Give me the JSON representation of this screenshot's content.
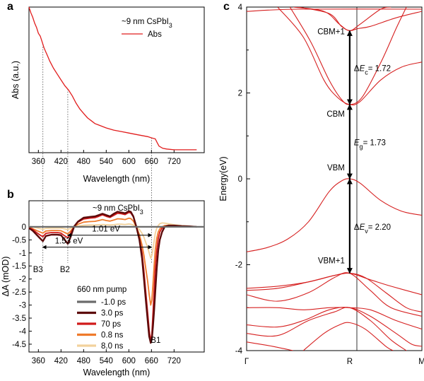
{
  "panel_labels": {
    "a": "a",
    "b": "b",
    "c": "c"
  },
  "colors": {
    "abs": "#e11d1d",
    "t_m1ps": "#6b6b6b",
    "t_3ps": "#5c0a0a",
    "t_70ps": "#d11a1a",
    "t_08ns": "#ef7a2b",
    "t_8ns": "#f2d29c",
    "band": "#d62020"
  },
  "chart_data": [
    {
      "id": "a",
      "type": "line",
      "title": "",
      "xlabel": "Wavelength (nm)",
      "ylabel": "Abs (a.u.)",
      "xlim": [
        335,
        800
      ],
      "ylim": [
        0,
        1.0
      ],
      "xticks": [
        360,
        420,
        480,
        540,
        600,
        660,
        720
      ],
      "xtick_labels": [
        "360",
        "420",
        "480",
        "540",
        "600",
        "660",
        "720"
      ],
      "legend_title": "~9 nm CsPbI3",
      "legend_title_main": "~9 nm CsPbI",
      "legend_title_sub": "3",
      "series": [
        {
          "name": "Abs",
          "x": [
            335,
            340,
            345,
            350,
            355,
            360,
            365,
            370,
            375,
            380,
            385,
            390,
            400,
            410,
            420,
            430,
            440,
            450,
            460,
            470,
            480,
            490,
            500,
            510,
            520,
            540,
            560,
            580,
            600,
            620,
            640,
            650,
            660,
            665,
            670,
            675,
            680,
            690,
            700,
            720,
            740,
            760,
            780
          ],
          "y": [
            1.0,
            0.96,
            0.93,
            0.89,
            0.86,
            0.82,
            0.8,
            0.76,
            0.72,
            0.69,
            0.66,
            0.63,
            0.58,
            0.54,
            0.5,
            0.46,
            0.43,
            0.39,
            0.34,
            0.3,
            0.27,
            0.24,
            0.22,
            0.2,
            0.19,
            0.17,
            0.155,
            0.145,
            0.135,
            0.125,
            0.115,
            0.11,
            0.102,
            0.098,
            0.095,
            0.07,
            0.045,
            0.03,
            0.025,
            0.02,
            0.02,
            0.02,
            0.02
          ]
        }
      ]
    },
    {
      "id": "b",
      "type": "line",
      "title": "~9 nm CsPbI3",
      "title_main": "~9 nm CsPbI",
      "title_sub": "3",
      "xlabel": "Wavelength (nm)",
      "ylabel": "ΔA  (mOD)",
      "xlim": [
        335,
        800
      ],
      "ylim": [
        -4.8,
        1.0
      ],
      "xticks": [
        360,
        420,
        480,
        540,
        600,
        660,
        720
      ],
      "xtick_labels": [
        "360",
        "420",
        "480",
        "540",
        "600",
        "660",
        "720"
      ],
      "yticks": [
        0,
        -0.5,
        -1,
        -1.5,
        -2,
        -2.5,
        -3,
        -3.5,
        -4,
        -4.5
      ],
      "ytick_labels": [
        "0",
        "-0.5",
        "-1",
        "-1.5",
        "-2",
        "-2.5",
        "-3",
        "-3.5",
        "-4",
        "-4.5"
      ],
      "legend_title": "660 nm pump",
      "series": [
        {
          "name": "-1.0 ps",
          "x": [
            335,
            500,
            800
          ],
          "y": [
            0.0,
            0.0,
            0.0
          ]
        },
        {
          "name": "3.0 ps",
          "x": [
            335,
            345,
            355,
            365,
            372,
            380,
            395,
            410,
            420,
            430,
            438,
            445,
            455,
            465,
            480,
            495,
            510,
            520,
            530,
            540,
            550,
            560,
            570,
            580,
            590,
            600,
            605,
            612,
            620,
            628,
            635,
            640,
            645,
            650,
            654,
            658,
            661,
            664,
            667,
            670,
            674,
            678,
            682,
            688,
            695,
            705,
            720,
            740,
            760,
            780
          ],
          "y": [
            -0.05,
            -0.15,
            -0.3,
            -0.45,
            -0.55,
            -0.35,
            -0.3,
            -0.3,
            -0.32,
            -0.5,
            -0.65,
            -0.4,
            0.02,
            0.2,
            0.35,
            0.38,
            0.4,
            0.45,
            0.5,
            0.45,
            0.4,
            0.5,
            0.58,
            0.55,
            0.52,
            0.6,
            0.58,
            0.4,
            0.0,
            -0.5,
            -1.2,
            -2.0,
            -2.8,
            -3.6,
            -4.2,
            -4.45,
            -4.3,
            -3.8,
            -3.2,
            -2.5,
            -1.6,
            -0.9,
            -0.5,
            -0.2,
            0.0,
            0.05,
            0.05,
            0.03,
            0.02,
            0.0
          ]
        },
        {
          "name": "70 ps",
          "x": [
            335,
            345,
            355,
            365,
            372,
            380,
            395,
            410,
            420,
            430,
            438,
            445,
            455,
            465,
            480,
            495,
            510,
            520,
            530,
            540,
            550,
            560,
            570,
            580,
            590,
            600,
            605,
            612,
            620,
            628,
            635,
            640,
            645,
            650,
            654,
            658,
            661,
            664,
            667,
            670,
            674,
            678,
            682,
            688,
            695,
            705,
            720,
            740,
            760,
            780
          ],
          "y": [
            -0.03,
            -0.1,
            -0.22,
            -0.32,
            -0.38,
            -0.25,
            -0.22,
            -0.22,
            -0.24,
            -0.35,
            -0.42,
            -0.26,
            0.02,
            0.18,
            0.3,
            0.33,
            0.35,
            0.4,
            0.46,
            0.4,
            0.36,
            0.44,
            0.52,
            0.5,
            0.47,
            0.55,
            0.53,
            0.38,
            0.0,
            -0.45,
            -1.0,
            -1.7,
            -2.5,
            -3.3,
            -3.95,
            -4.4,
            -4.1,
            -3.3,
            -2.4,
            -1.6,
            -0.9,
            -0.45,
            -0.2,
            -0.05,
            0.02,
            0.05,
            0.05,
            0.03,
            0.02,
            0.0
          ]
        },
        {
          "name": "0.8 ns",
          "x": [
            335,
            345,
            355,
            365,
            372,
            380,
            395,
            410,
            420,
            430,
            438,
            445,
            455,
            465,
            480,
            495,
            510,
            520,
            530,
            540,
            550,
            560,
            570,
            580,
            590,
            600,
            605,
            612,
            620,
            628,
            635,
            640,
            645,
            650,
            654,
            658,
            661,
            664,
            667,
            670,
            674,
            678,
            682,
            688,
            695,
            705,
            720,
            740,
            760,
            780
          ],
          "y": [
            -0.02,
            -0.07,
            -0.14,
            -0.2,
            -0.24,
            -0.16,
            -0.14,
            -0.14,
            -0.15,
            -0.22,
            -0.27,
            -0.17,
            0.01,
            0.1,
            0.18,
            0.2,
            0.21,
            0.24,
            0.28,
            0.24,
            0.22,
            0.26,
            0.31,
            0.3,
            0.28,
            0.33,
            0.32,
            0.22,
            0.0,
            -0.3,
            -0.7,
            -1.1,
            -1.6,
            -2.1,
            -2.6,
            -3.0,
            -2.8,
            -2.2,
            -1.5,
            -0.9,
            -0.45,
            -0.2,
            -0.08,
            0.0,
            0.05,
            0.06,
            0.05,
            0.03,
            0.02,
            0.0
          ]
        },
        {
          "name": "8.0 ns",
          "x": [
            335,
            345,
            355,
            365,
            372,
            380,
            395,
            410,
            420,
            430,
            438,
            445,
            455,
            465,
            480,
            495,
            510,
            520,
            530,
            540,
            550,
            560,
            570,
            580,
            590,
            600,
            605,
            612,
            620,
            628,
            635,
            640,
            645,
            650,
            654,
            658,
            661,
            664,
            667,
            670,
            674,
            678,
            682,
            688,
            695,
            705,
            720,
            740,
            760,
            780
          ],
          "y": [
            0.02,
            0.0,
            -0.04,
            -0.07,
            -0.09,
            -0.06,
            -0.05,
            -0.05,
            -0.05,
            -0.08,
            -0.1,
            -0.06,
            0.0,
            0.03,
            0.06,
            0.07,
            0.07,
            0.08,
            0.09,
            0.08,
            0.07,
            0.08,
            0.1,
            0.1,
            0.09,
            0.11,
            0.1,
            0.07,
            0.0,
            -0.1,
            -0.25,
            -0.4,
            -0.6,
            -0.8,
            -1.0,
            -1.2,
            -1.1,
            -0.85,
            -0.55,
            -0.25,
            -0.05,
            0.05,
            0.12,
            0.15,
            0.14,
            0.12,
            0.08,
            0.05,
            0.03,
            0.0
          ]
        }
      ],
      "annotations": [
        {
          "label": "1.01 eV",
          "x_from": 438,
          "x_to": 660,
          "y": -0.32
        },
        {
          "label": "1.53 eV",
          "x_from": 372,
          "x_to": 660,
          "y": -0.78
        }
      ],
      "peak_labels": [
        {
          "label": "B3",
          "x": 372
        },
        {
          "label": "B2",
          "x": 438
        },
        {
          "label": "B1",
          "x": 660
        }
      ]
    },
    {
      "id": "c",
      "type": "line",
      "title": "",
      "xlabel": "",
      "ylabel": "Energy(eV)",
      "ylim": [
        -4,
        4
      ],
      "yticks": [
        -4,
        -2,
        0,
        2,
        4
      ],
      "ytick_labels": [
        "-4",
        "-2",
        "0",
        "2",
        "4"
      ],
      "kpoints": [
        "Γ",
        "R",
        "M"
      ],
      "kpoint_positions": [
        0,
        1,
        1.7
      ],
      "bands": [
        [
          [
            0.0,
            3.9
          ],
          [
            0.5,
            3.95
          ],
          [
            1.7,
            3.95
          ]
        ],
        [
          [
            0.45,
            4.0
          ],
          [
            0.75,
            3.9
          ],
          [
            0.9,
            3.6
          ],
          [
            1.0,
            3.45
          ],
          [
            1.1,
            3.6
          ],
          [
            1.3,
            3.95
          ],
          [
            1.4,
            4.0
          ]
        ],
        [
          [
            0.5,
            4.0
          ],
          [
            0.8,
            3.85
          ],
          [
            0.92,
            3.55
          ],
          [
            1.0,
            3.45
          ],
          [
            1.08,
            3.5
          ],
          [
            1.2,
            3.55
          ],
          [
            1.45,
            3.75
          ],
          [
            1.7,
            3.9
          ]
        ],
        [
          [
            0.3,
            4.0
          ],
          [
            0.55,
            3.3
          ],
          [
            0.75,
            2.3
          ],
          [
            0.88,
            1.9
          ],
          [
            1.0,
            1.73
          ],
          [
            1.1,
            1.8
          ],
          [
            1.3,
            2.3
          ],
          [
            1.5,
            2.6
          ],
          [
            1.7,
            2.72
          ]
        ],
        [
          [
            0.42,
            4.0
          ],
          [
            0.62,
            3.2
          ],
          [
            0.8,
            2.3
          ],
          [
            0.92,
            1.85
          ],
          [
            1.0,
            1.73
          ],
          [
            1.12,
            1.9
          ],
          [
            1.3,
            2.7
          ],
          [
            1.45,
            3.5
          ],
          [
            1.55,
            4.0
          ]
        ],
        [
          [
            0.0,
            -1.7
          ],
          [
            0.2,
            -1.6
          ],
          [
            0.4,
            -1.4
          ],
          [
            0.6,
            -1.0
          ],
          [
            0.8,
            -0.3
          ],
          [
            0.92,
            -0.05
          ],
          [
            1.0,
            0.0
          ],
          [
            1.1,
            -0.1
          ],
          [
            1.3,
            -0.5
          ],
          [
            1.5,
            -0.75
          ],
          [
            1.7,
            -0.85
          ]
        ],
        [
          [
            0.0,
            -2.55
          ],
          [
            0.3,
            -2.5
          ],
          [
            0.6,
            -2.4
          ],
          [
            0.85,
            -2.25
          ],
          [
            1.0,
            -2.2
          ],
          [
            1.2,
            -2.35
          ],
          [
            1.4,
            -2.5
          ],
          [
            1.7,
            -2.7
          ]
        ],
        [
          [
            0.0,
            -2.6
          ],
          [
            0.3,
            -2.55
          ],
          [
            0.6,
            -2.4
          ],
          [
            0.85,
            -2.25
          ],
          [
            1.0,
            -2.2
          ],
          [
            1.15,
            -2.3
          ],
          [
            1.35,
            -2.65
          ],
          [
            1.55,
            -3.0
          ],
          [
            1.7,
            -3.1
          ]
        ],
        [
          [
            0.0,
            -2.7
          ],
          [
            0.3,
            -2.85
          ],
          [
            0.6,
            -2.65
          ],
          [
            0.85,
            -2.3
          ],
          [
            1.0,
            -2.2
          ],
          [
            1.2,
            -2.6
          ],
          [
            1.4,
            -3.0
          ],
          [
            1.7,
            -3.2
          ]
        ],
        [
          [
            0.0,
            -3.0
          ],
          [
            0.3,
            -3.0
          ],
          [
            0.55,
            -3.05
          ],
          [
            0.8,
            -3.0
          ],
          [
            1.0,
            -3.0
          ],
          [
            1.2,
            -3.05
          ],
          [
            1.45,
            -3.3
          ],
          [
            1.7,
            -3.5
          ]
        ],
        [
          [
            0.0,
            -3.4
          ],
          [
            0.3,
            -3.45
          ],
          [
            0.55,
            -3.3
          ],
          [
            0.8,
            -3.05
          ],
          [
            1.0,
            -3.0
          ],
          [
            1.2,
            -3.2
          ],
          [
            1.45,
            -3.6
          ],
          [
            1.6,
            -3.85
          ],
          [
            1.7,
            -3.9
          ]
        ],
        [
          [
            0.0,
            -3.6
          ],
          [
            0.3,
            -3.65
          ],
          [
            0.6,
            -3.3
          ],
          [
            0.85,
            -3.1
          ],
          [
            1.0,
            -3.0
          ],
          [
            1.2,
            -3.3
          ],
          [
            1.4,
            -3.75
          ],
          [
            1.55,
            -4.0
          ]
        ],
        [
          [
            0.0,
            -3.8
          ],
          [
            0.25,
            -3.9
          ],
          [
            0.45,
            -4.0
          ]
        ],
        [
          [
            0.55,
            -4.0
          ],
          [
            0.75,
            -3.6
          ],
          [
            0.9,
            -3.4
          ],
          [
            1.0,
            -3.35
          ],
          [
            1.15,
            -3.5
          ],
          [
            1.35,
            -3.9
          ],
          [
            1.42,
            -4.0
          ]
        ]
      ],
      "labels": [
        {
          "text": "CBM+1",
          "energy": 3.45
        },
        {
          "text": "CBM",
          "energy": 1.73
        },
        {
          "text": "VBM",
          "energy": 0.0
        },
        {
          "text": "VBM+1",
          "energy": -2.2
        }
      ],
      "gaps": [
        {
          "sym": "Δ",
          "var": "E",
          "sub": "c",
          "value": "= 1.72",
          "from": 1.73,
          "to": 3.45
        },
        {
          "sym": "",
          "var": "E",
          "sub": "g",
          "value": "= 1.73",
          "from": 0.0,
          "to": 1.73
        },
        {
          "sym": "Δ",
          "var": "E",
          "sub": "v",
          "value": "= 2.20",
          "from": -2.2,
          "to": 0.0
        }
      ]
    }
  ]
}
